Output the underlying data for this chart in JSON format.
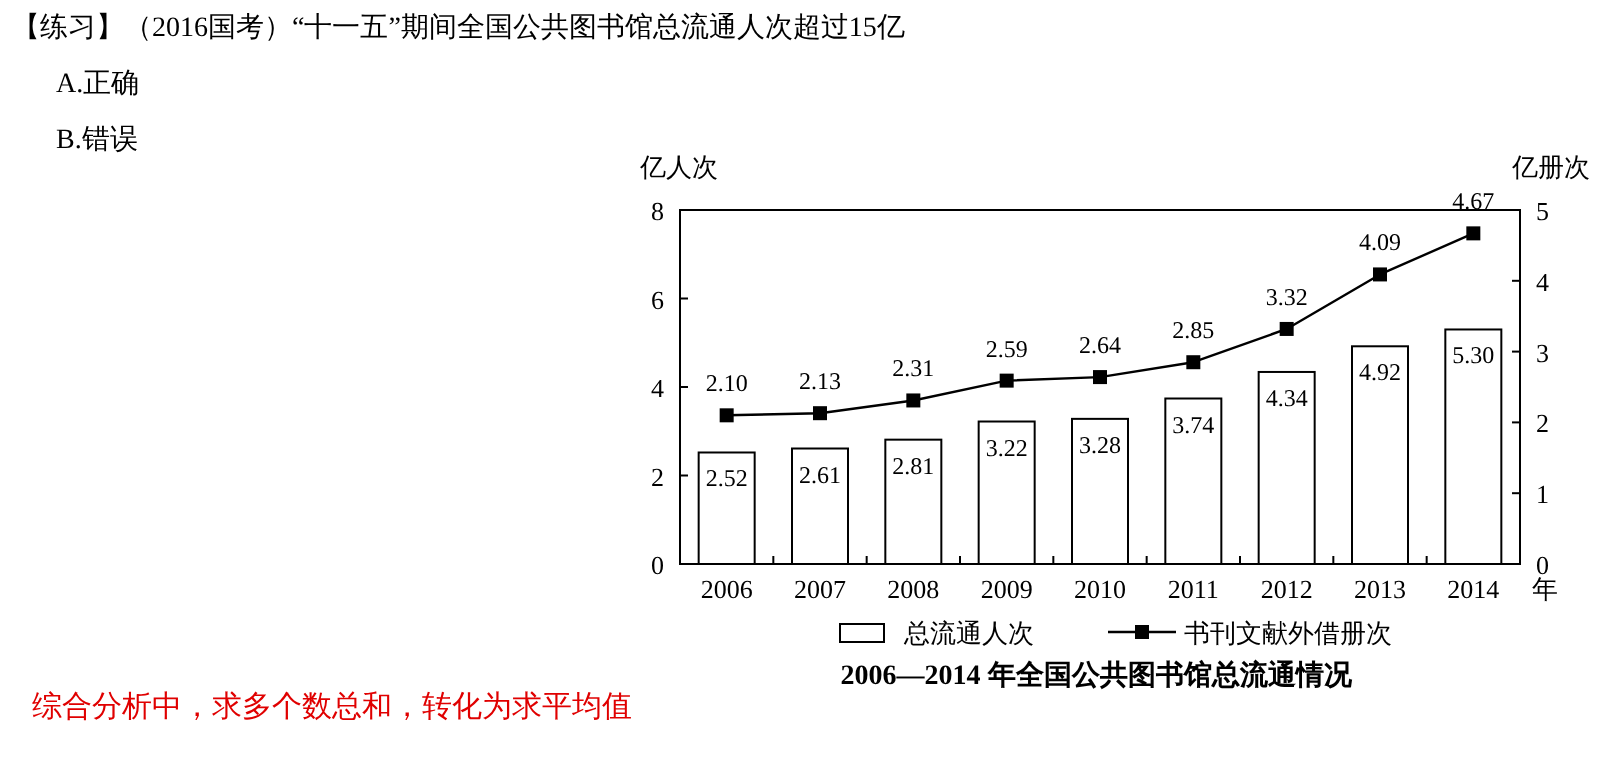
{
  "chart_data": {
    "type": "bar",
    "title": "2006—2014 年全国公共图书馆总流通情况",
    "ylabel": "亿人次",
    "y2label": "亿册次",
    "xlabel": "年",
    "annotations": [
      "【练习】（2016国考）“十一五”期间全国公共图书馆总流通人次超过15亿",
      "A.正确",
      "B.错误",
      "综合分析中，求多个数总和，转化为求平均值"
    ],
    "categories": [
      "2006",
      "2007",
      "2008",
      "2009",
      "2010",
      "2011",
      "2012",
      "2013",
      "2014"
    ],
    "series": [
      {
        "name": "总流通人次",
        "color": "#ffffff",
        "values": [
          2.52,
          2.61,
          2.81,
          3.22,
          3.28,
          3.74,
          4.34,
          4.92,
          5.3
        ],
        "value_labels": [
          "2.52",
          "2.61",
          "2.81",
          "3.22",
          "3.28",
          "3.74",
          "4.34",
          "4.92",
          "5.30"
        ]
      },
      {
        "name": "书刊文献外借册次",
        "type": "line",
        "axis": "y2",
        "color": "#000000",
        "marker": "square",
        "values": [
          2.1,
          2.13,
          2.31,
          2.59,
          2.64,
          2.85,
          3.32,
          4.09,
          4.67
        ],
        "value_labels": [
          "2.10",
          "2.13",
          "2.31",
          "2.59",
          "2.64",
          "2.85",
          "3.32",
          "4.09",
          "4.67"
        ]
      }
    ],
    "ylim": [
      0,
      8
    ],
    "yticks": [
      0,
      2,
      4,
      6,
      8
    ],
    "y2lim": [
      0,
      5
    ],
    "y2ticks": [
      0,
      1,
      2,
      3,
      4,
      5
    ],
    "legend": "bottom",
    "grid": false
  }
}
